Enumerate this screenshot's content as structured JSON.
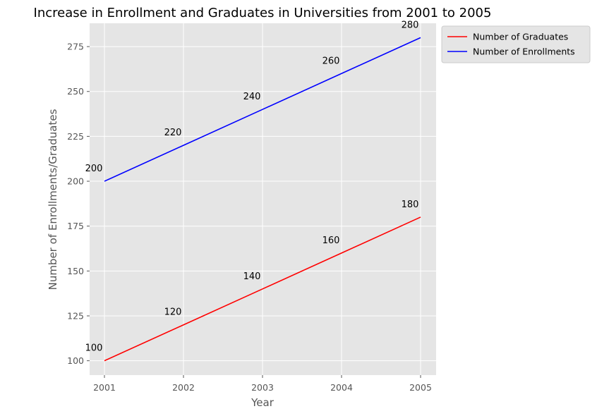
{
  "chart_data": {
    "type": "line",
    "title": "Increase in Enrollment and Graduates in Universities from 2001 to 2005",
    "xlabel": "Year",
    "ylabel": "Number of Enrollments/Graduates",
    "x": [
      "2001",
      "2002",
      "2003",
      "2004",
      "2005"
    ],
    "y_ticks": [
      100,
      125,
      150,
      175,
      200,
      225,
      250,
      275
    ],
    "ylim": [
      92,
      288
    ],
    "grid": true,
    "legend_position": "outside-top-right",
    "series": [
      {
        "name": "Number of Graduates",
        "color": "#ff0000",
        "values": [
          100,
          120,
          140,
          160,
          180
        ]
      },
      {
        "name": "Number of Enrollments",
        "color": "#0000ff",
        "values": [
          200,
          220,
          240,
          260,
          280
        ]
      }
    ],
    "colors": {
      "plot_background": "#e5e5e5",
      "grid": "#ffffff",
      "tick_text": "#555555"
    }
  }
}
